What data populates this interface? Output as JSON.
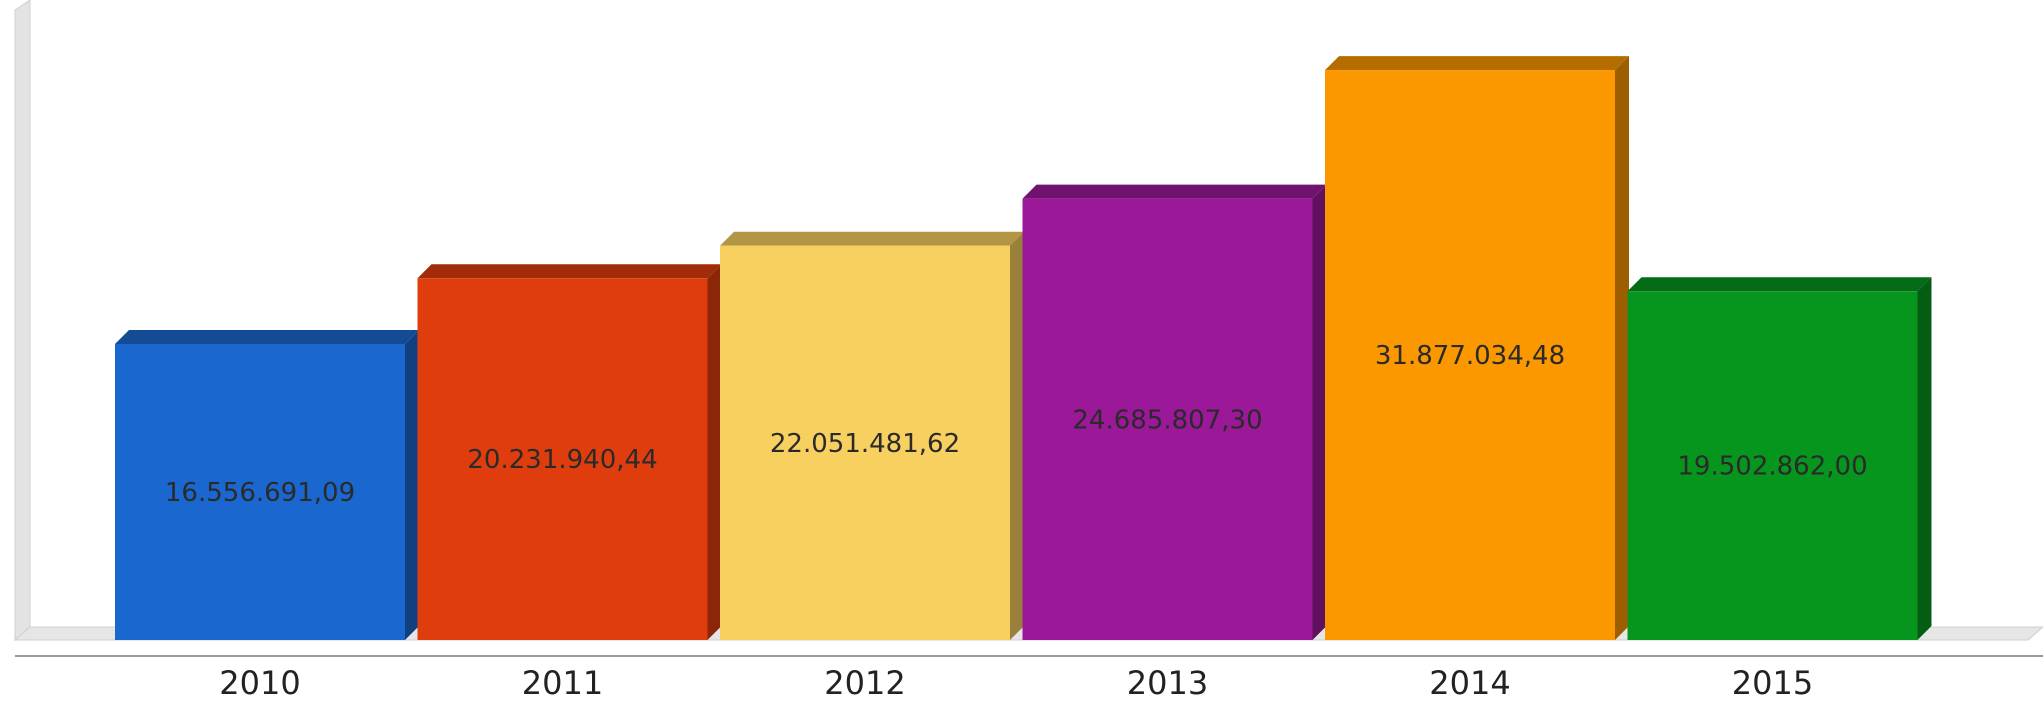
{
  "chart_data": {
    "type": "bar",
    "title": "",
    "xlabel": "",
    "ylabel": "",
    "ylim": [
      0,
      33000000
    ],
    "grid": false,
    "style": "3d",
    "categories": [
      "2010",
      "2011",
      "2012",
      "2013",
      "2014",
      "2015"
    ],
    "values": [
      16556691.09,
      20231940.44,
      22051481.62,
      24685807.3,
      31877034.48,
      19502862.0
    ],
    "value_labels": [
      "16.556.691,09",
      "20.231.940,44",
      "22.051.481,62",
      "24.685.807,30",
      "31.877.034,48",
      "19.502.862,00"
    ],
    "colors": [
      "#1a68cf",
      "#e03d0e",
      "#f7d060",
      "#9b1999",
      "#fb9800",
      "#06961e"
    ]
  }
}
